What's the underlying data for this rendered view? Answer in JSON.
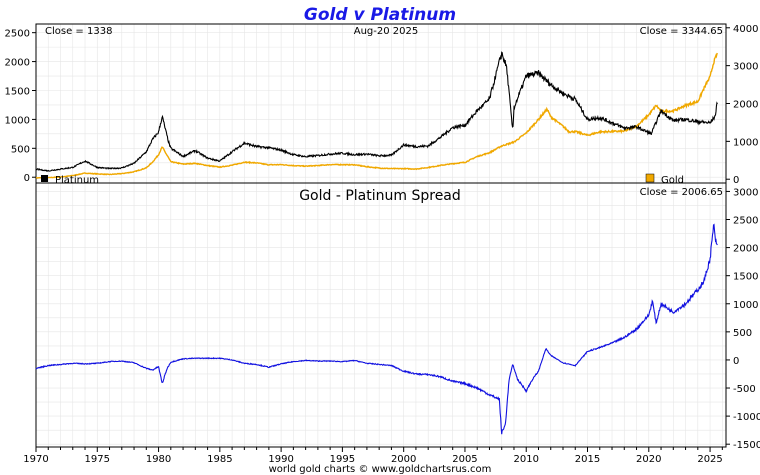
{
  "title": "Gold v Platinum",
  "footer": "world gold charts © www.goldchartsrus.com",
  "colors": {
    "title": "#1a1ae6",
    "gold": "#f0a800",
    "platinum": "#000000",
    "spread": "#1010e0",
    "grid": "#e6e6e6"
  },
  "chart_data": [
    {
      "type": "line",
      "panel": "top",
      "header_left": "Close = 1338",
      "header_center": "Aug-20  2025",
      "header_right": "Close = 3344.65",
      "left_axis": {
        "ylim": [
          -100,
          2650
        ],
        "ticks": [
          0,
          500,
          1000,
          1500,
          2000,
          2500
        ],
        "labels": [
          "0",
          "500",
          "1000",
          "1500",
          "2000",
          "2500"
        ]
      },
      "right_axis": {
        "ylim": [
          -100,
          4100
        ],
        "ticks": [
          0,
          1000,
          2000,
          3000,
          4000
        ],
        "labels": [
          "0",
          "1000",
          "2000",
          "3000",
          "4000"
        ]
      },
      "series": [
        {
          "name": "Platinum",
          "axis": "left",
          "x": [
            1970,
            1971,
            1972,
            1973,
            1974,
            1975,
            1976,
            1977,
            1978,
            1979,
            1979.5,
            1980.0,
            1980.3,
            1980.8,
            1981,
            1982,
            1983,
            1984,
            1985,
            1986,
            1987,
            1988,
            1989,
            1990,
            1991,
            1992,
            1993,
            1994,
            1995,
            1996,
            1997,
            1998,
            1999,
            2000,
            2001,
            2002,
            2003,
            2004,
            2005,
            2006,
            2006.5,
            2007,
            2008.0,
            2008.4,
            2008.9,
            2009,
            2010,
            2011,
            2012,
            2013,
            2014,
            2015,
            2016,
            2017,
            2018,
            2019,
            2020.2,
            2020.5,
            2021,
            2022,
            2023,
            2024,
            2025.0,
            2025.4,
            2025.63
          ],
          "values": [
            140,
            110,
            140,
            170,
            280,
            170,
            150,
            160,
            240,
            440,
            650,
            780,
            1050,
            620,
            500,
            360,
            460,
            330,
            280,
            440,
            590,
            530,
            510,
            470,
            390,
            355,
            375,
            400,
            415,
            390,
            400,
            370,
            380,
            560,
            530,
            540,
            690,
            860,
            900,
            1150,
            1250,
            1350,
            2150,
            1900,
            800,
            1200,
            1750,
            1800,
            1600,
            1450,
            1350,
            1000,
            1030,
            940,
            850,
            870,
            750,
            900,
            1150,
            980,
            1000,
            960,
            940,
            1050,
            1338
          ]
        },
        {
          "name": "Gold",
          "axis": "right",
          "x": [
            1970,
            1971,
            1972,
            1973,
            1974,
            1975,
            1976,
            1977,
            1978,
            1979,
            1979.5,
            1980.0,
            1980.3,
            1981,
            1982,
            1983,
            1984,
            1985,
            1986,
            1987,
            1988,
            1989,
            1990,
            1991,
            1992,
            1993,
            1994,
            1995,
            1996,
            1997,
            1998,
            1999,
            2000,
            2001,
            2002,
            2003,
            2004,
            2005,
            2006,
            2007,
            2008,
            2009,
            2010,
            2011,
            2011.7,
            2012,
            2013,
            2013.5,
            2014,
            2015,
            2016,
            2017,
            2018,
            2019,
            2020,
            2020.6,
            2021,
            2022,
            2023,
            2024,
            2024.5,
            2025.0,
            2025.3,
            2025.63
          ],
          "values": [
            35,
            41,
            58,
            97,
            160,
            140,
            125,
            148,
            195,
            300,
            450,
            650,
            850,
            460,
            400,
            420,
            360,
            320,
            370,
            450,
            430,
            380,
            385,
            360,
            345,
            360,
            385,
            385,
            380,
            330,
            295,
            280,
            280,
            270,
            310,
            365,
            410,
            445,
            600,
            700,
            880,
            980,
            1220,
            1580,
            1850,
            1650,
            1400,
            1250,
            1260,
            1160,
            1250,
            1260,
            1270,
            1400,
            1700,
            1950,
            1800,
            1800,
            1950,
            2050,
            2400,
            2700,
            3100,
            3344.65
          ]
        }
      ],
      "legend": [
        "Platinum",
        "Gold"
      ]
    },
    {
      "type": "line",
      "panel": "bottom",
      "title": "Gold - Platinum Spread",
      "header_right": "Close = 2006.65",
      "right_axis": {
        "ylim": [
          -1550,
          3150
        ],
        "ticks": [
          -1500,
          -1000,
          -500,
          0,
          500,
          1000,
          1500,
          2000,
          2500,
          3000
        ],
        "labels": [
          "-1500",
          "-1000",
          "-500",
          "0",
          "500",
          "1000",
          "1500",
          "2000",
          "2500",
          "3000"
        ]
      },
      "series": [
        {
          "name": "Gold - Platinum Spread",
          "x": [
            1970,
            1971,
            1972,
            1973,
            1974,
            1975,
            1976,
            1977,
            1978,
            1979,
            1979.5,
            1980.0,
            1980.3,
            1980.7,
            1981,
            1982,
            1983,
            1984,
            1985,
            1986,
            1987,
            1988,
            1989,
            1990,
            1991,
            1992,
            1993,
            1994,
            1995,
            1996,
            1997,
            1998,
            1999,
            2000,
            2001,
            2002,
            2003,
            2004,
            2005,
            2006,
            2007,
            2007.8,
            2008.0,
            2008.3,
            2008.6,
            2008.9,
            2009.3,
            2010,
            2010.5,
            2011,
            2011.6,
            2012,
            2013,
            2014,
            2015,
            2016,
            2017,
            2018,
            2019,
            2020,
            2020.3,
            2020.6,
            2021,
            2022,
            2023,
            2024,
            2024.5,
            2025.0,
            2025.3,
            2025.5,
            2025.63
          ],
          "values": [
            -150,
            -100,
            -80,
            -60,
            -70,
            -60,
            -30,
            -20,
            -50,
            -150,
            -180,
            -120,
            -420,
            -150,
            -40,
            20,
            30,
            30,
            30,
            0,
            -60,
            -80,
            -130,
            -70,
            -30,
            -10,
            -20,
            -20,
            -30,
            -10,
            -60,
            -80,
            -100,
            -200,
            -250,
            -260,
            -300,
            -380,
            -420,
            -500,
            -620,
            -700,
            -1300,
            -1150,
            -350,
            -80,
            -350,
            -550,
            -350,
            -200,
            200,
            80,
            -50,
            -100,
            150,
            220,
            300,
            400,
            550,
            800,
            1050,
            650,
            1000,
            850,
            1000,
            1250,
            1400,
            1800,
            2400,
            2050,
            2006.65
          ]
        }
      ]
    }
  ],
  "x_axis": {
    "xlim": [
      1970,
      2026.3
    ],
    "ticks": [
      1970,
      1975,
      1980,
      1985,
      1990,
      1995,
      2000,
      2005,
      2010,
      2015,
      2020,
      2025
    ],
    "labels": [
      "1970",
      "1975",
      "1980",
      "1985",
      "1990",
      "1995",
      "2000",
      "2005",
      "2010",
      "2015",
      "2020",
      "2025"
    ]
  }
}
